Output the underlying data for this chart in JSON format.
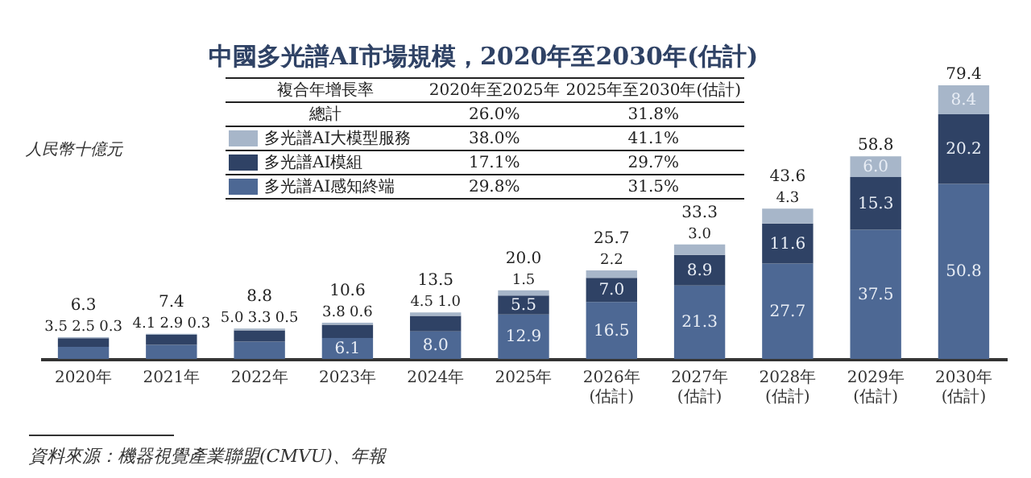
{
  "chart_data": {
    "type": "bar",
    "title": "中國多光譜AI市場規模，2020年至2030年(估計)",
    "ylabel": "人民幣十億元",
    "categories": [
      "2020年",
      "2021年",
      "2022年",
      "2023年",
      "2024年",
      "2025年",
      "2026年\n(估計)",
      "2027年\n(估計)",
      "2028年\n(估計)",
      "2029年\n(估計)",
      "2030年\n(估計)"
    ],
    "series": [
      {
        "name": "多光譜AI感知終端",
        "color": "#4d6894",
        "values": [
          3.5,
          4.1,
          5.0,
          6.1,
          8.0,
          12.9,
          16.5,
          21.3,
          27.7,
          37.5,
          50.8
        ],
        "value_labels": [
          "3.5",
          "4.1",
          "5.0",
          "6.1",
          "8.0",
          "12.9",
          "16.5",
          "21.3",
          "27.7",
          "37.5",
          "50.8"
        ]
      },
      {
        "name": "多光譜AI模組",
        "color": "#2f4265",
        "values": [
          2.5,
          2.9,
          3.3,
          3.8,
          4.5,
          5.5,
          7.0,
          8.9,
          11.6,
          15.3,
          20.2
        ],
        "value_labels": [
          "2.5",
          "2.9",
          "3.3",
          "3.8",
          "4.5",
          "5.5",
          "7.0",
          "8.9",
          "11.6",
          "15.3",
          "20.2"
        ]
      },
      {
        "name": "多光譜AI大模型服務",
        "color": "#a7b6c9",
        "values": [
          0.3,
          0.3,
          0.5,
          0.6,
          1.0,
          1.5,
          2.2,
          3.0,
          4.3,
          6.0,
          8.4
        ],
        "value_labels": [
          "0.3",
          "0.3",
          "0.5",
          "0.6",
          "1.0",
          "1.5",
          "2.2",
          "3.0",
          "4.3",
          "6.0",
          "8.4"
        ]
      }
    ],
    "stacked": true,
    "totals": [
      "6.3",
      "7.4",
      "8.8",
      "10.6",
      "13.5",
      "20.0",
      "25.7",
      "33.3",
      "43.6",
      "58.8",
      "79.4"
    ],
    "legend": "top",
    "tick_labels": "x",
    "annotations": [
      "複合年增長率",
      "2020年至2025年",
      "2025年至2030年(估計)",
      "總計",
      "26.0%",
      "31.8%",
      "38.0%",
      "41.1%",
      "17.1%",
      "29.7%",
      "29.8%",
      "31.5%",
      "資料來源：機器視覺產業聯盟(CMVU)、年報"
    ]
  }
}
